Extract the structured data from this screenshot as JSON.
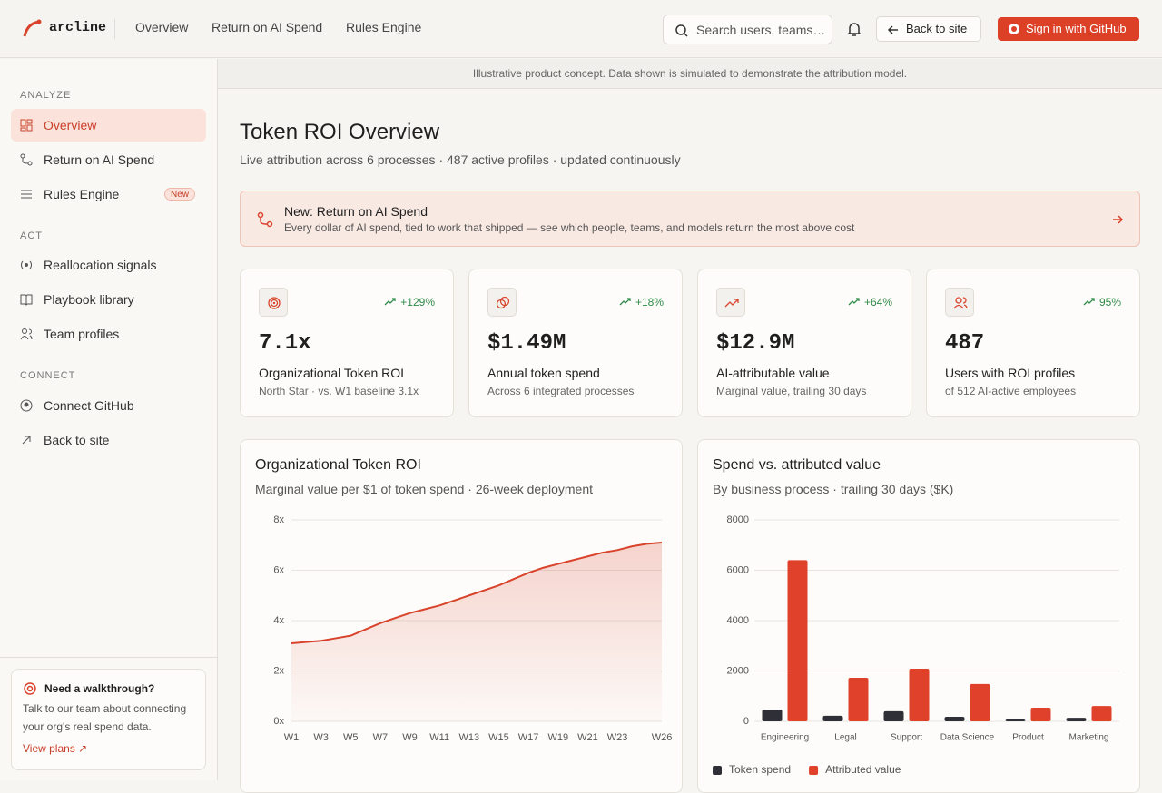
{
  "header": {
    "logo": "arcline",
    "nav": [
      "Overview",
      "Return on AI Spend",
      "Rules Engine"
    ],
    "search": "Search users, teams…",
    "back": "Back to site",
    "signin": "Sign in with GitHub"
  },
  "sidebar": {
    "sections": [
      {
        "title": "ANALYZE",
        "items": [
          "Overview",
          "Return on AI Spend",
          "Rules Engine"
        ]
      },
      {
        "title": "ACT",
        "items": [
          "Reallocation signals",
          "Playbook library",
          "Team profiles"
        ]
      },
      {
        "title": "CONNECT",
        "items": [
          "Connect GitHub",
          "Back to site"
        ]
      }
    ],
    "badge": "New",
    "help": {
      "title": "Need a walkthrough?",
      "text": "Talk to our team about connecting your org's real spend data.",
      "link": "View plans"
    }
  },
  "banner": "Illustrative product concept. Data shown is simulated to demonstrate the attribution model.",
  "page": {
    "title": "Token ROI Overview",
    "subtitle": "Live attribution across 6 processes · 487 active profiles · updated continuously"
  },
  "announcement": {
    "title": "New: Return on AI Spend",
    "text": "Every dollar of AI spend, tied to work that shipped — see which people, teams, and models return the most above cost"
  },
  "kpis": [
    {
      "delta": "+129%",
      "value": "7.1x",
      "label": "Organizational Token ROI",
      "sub": "North Star · vs. W1 baseline 3.1x"
    },
    {
      "delta": "+18%",
      "value": "$1.49M",
      "label": "Annual token spend",
      "sub": "Across 6 integrated processes"
    },
    {
      "delta": "+64%",
      "value": "$12.9M",
      "label": "AI-attributable value",
      "sub": "Marginal value, trailing 30 days"
    },
    {
      "delta": "95%",
      "value": "487",
      "label": "Users with ROI profiles",
      "sub": "of 512 AI-active employees"
    }
  ],
  "chart_data": [
    {
      "type": "line",
      "title": "Organizational Token ROI",
      "subtitle": "Marginal value per $1 of token spend · 26-week deployment",
      "categories": [
        "W1",
        null,
        "W3",
        null,
        "W5",
        null,
        "W7",
        null,
        "W9",
        null,
        "W11",
        null,
        "W13",
        null,
        "W15",
        null,
        "W17",
        null,
        "W19",
        null,
        "W21",
        null,
        "W23",
        null,
        null,
        "W26"
      ],
      "values": [
        3.1,
        3.15,
        3.2,
        3.3,
        3.4,
        3.65,
        3.9,
        4.1,
        4.3,
        4.45,
        4.6,
        4.8,
        5.0,
        5.2,
        5.4,
        5.65,
        5.9,
        6.1,
        6.25,
        6.4,
        6.55,
        6.7,
        6.8,
        6.95,
        7.05,
        7.1
      ],
      "color": "#d9432c",
      "ylim": [
        0,
        8
      ],
      "yticks": [
        {
          "value": 0,
          "label": "0x"
        },
        {
          "value": 2,
          "label": "2x"
        },
        {
          "value": 4,
          "label": "4x"
        },
        {
          "value": 6,
          "label": "6x"
        },
        {
          "value": 8,
          "label": "8x"
        }
      ],
      "grid": true
    },
    {
      "type": "bar",
      "title": "Spend vs. attributed value",
      "subtitle": "By business process · trailing 30 days ($K)",
      "categories": [
        "Engineering",
        "Legal",
        "Support",
        "Data Science",
        "Product",
        "Marketing"
      ],
      "series": [
        {
          "name": "Token spend",
          "color": "#2f3037",
          "values": [
            470,
            220,
            400,
            180,
            110,
            140
          ]
        },
        {
          "name": "Attributed value",
          "color": "#e0412b",
          "values": [
            6400,
            1730,
            2090,
            1480,
            540,
            610
          ]
        }
      ],
      "ylim": [
        0,
        8000
      ],
      "yticks": [
        0,
        2000,
        4000,
        6000,
        8000
      ],
      "grid": true,
      "legend": "bottom-left"
    }
  ]
}
